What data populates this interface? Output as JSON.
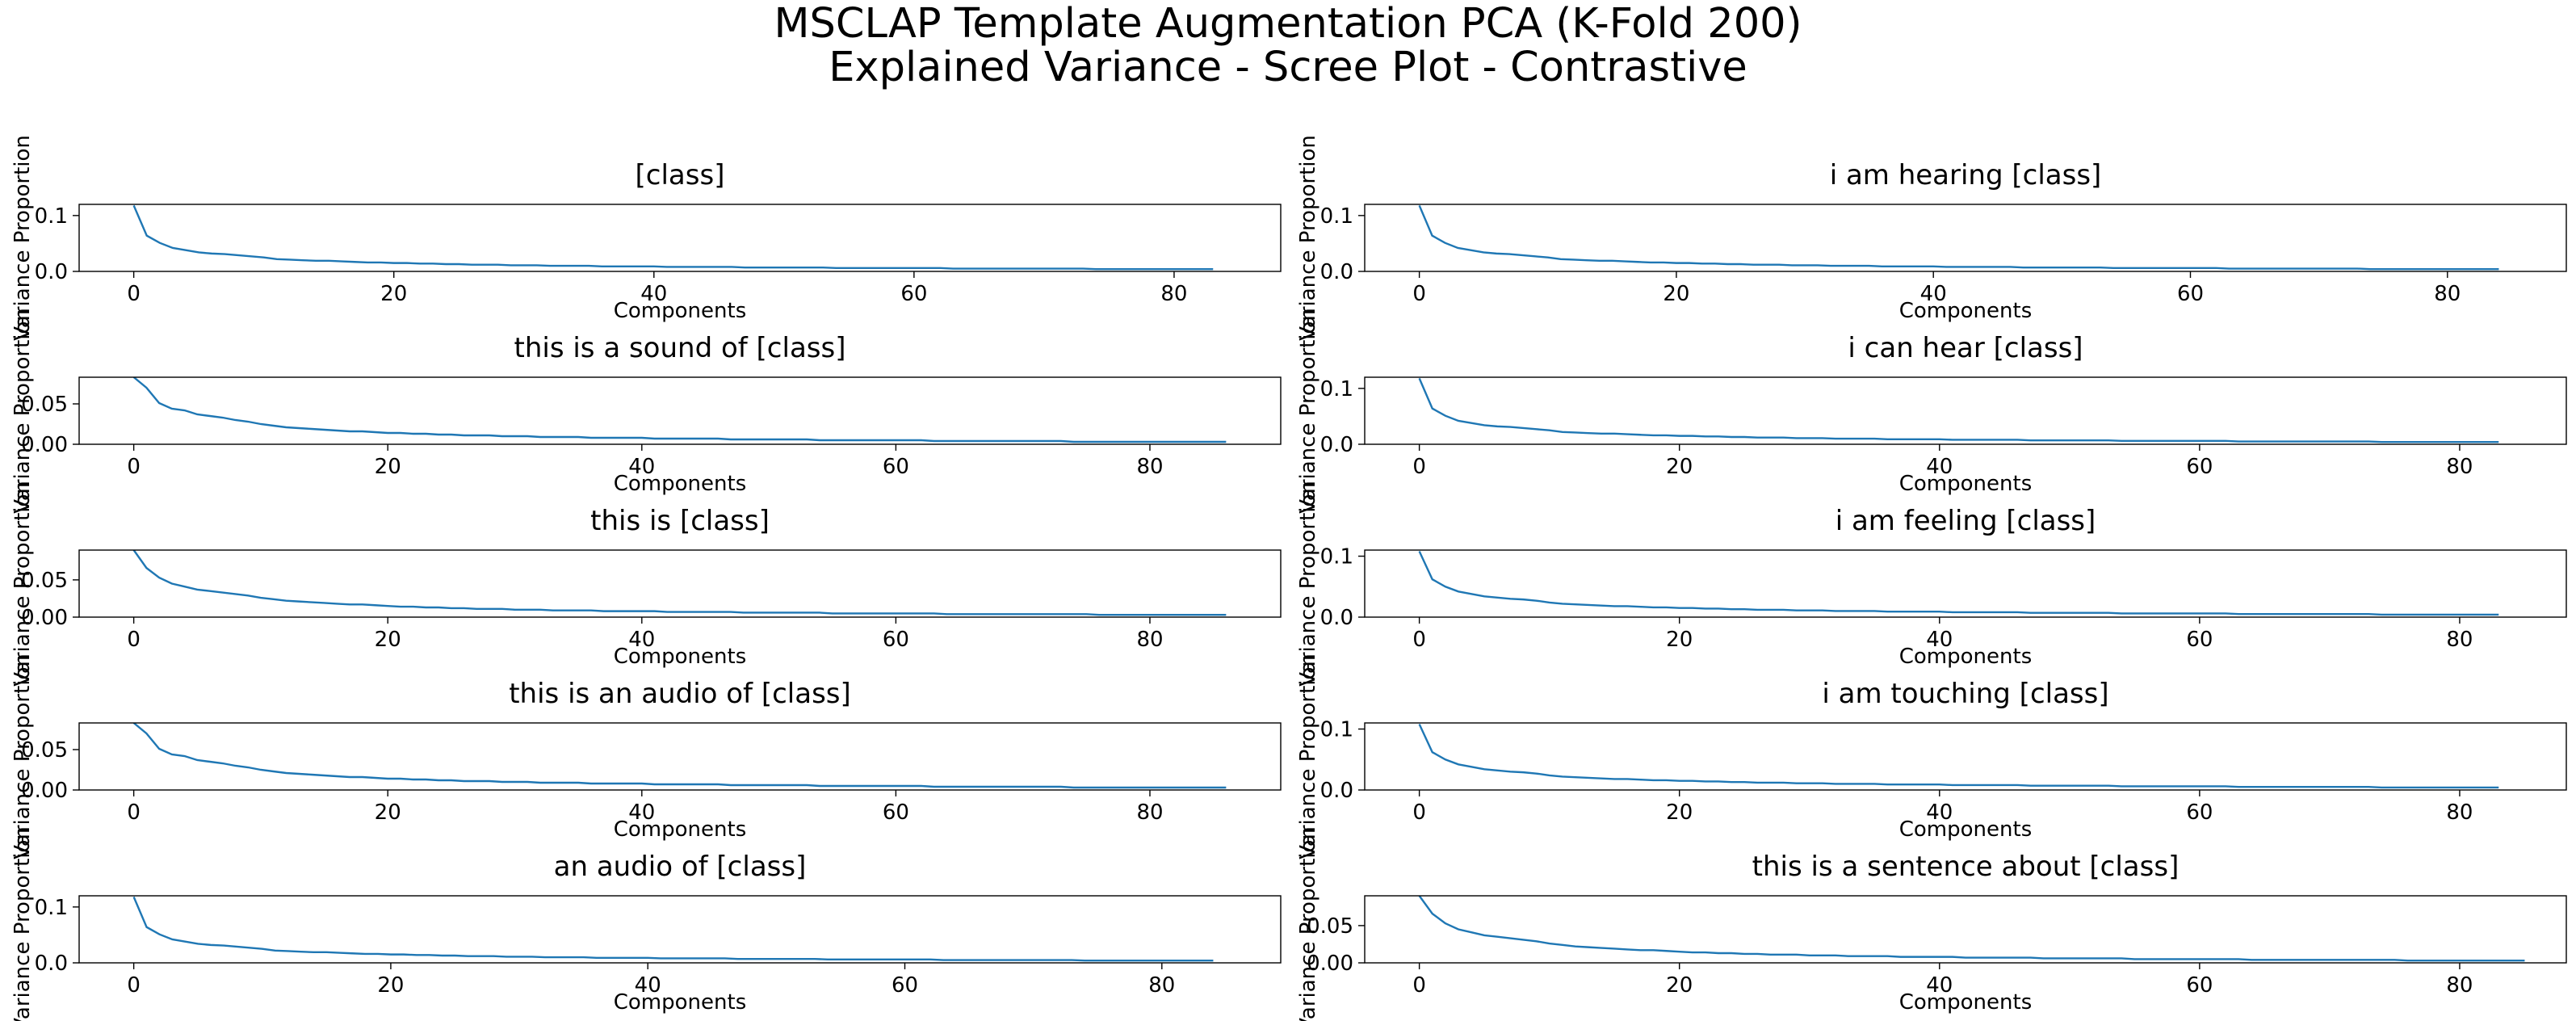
{
  "figure": {
    "title_line1": "MSCLAP Template Augmentation PCA (K-Fold 200)",
    "title_line2": "Explained Variance - Scree Plot - Contrastive",
    "line_color": "#1f77b4",
    "axis_color": "#000000"
  },
  "chart_data": [
    {
      "type": "line",
      "title": "[class]",
      "xlabel": "Components",
      "ylabel": "Variance Proportion",
      "xlim": [
        -4.2,
        88.2
      ],
      "ylim": [
        0,
        0.12
      ],
      "xticks": [
        0,
        20,
        40,
        60,
        80
      ],
      "yticks": [
        0.0,
        0.1
      ],
      "ytick_labels": [
        "0.0",
        "0.1"
      ],
      "grid": false,
      "n_components": 84,
      "first": 0.118,
      "y": [
        0.118,
        0.064,
        0.051,
        0.042,
        0.038,
        0.034,
        0.032,
        0.031,
        0.029,
        0.027,
        0.025,
        0.022,
        0.021,
        0.02,
        0.019,
        0.019,
        0.018,
        0.017,
        0.016,
        0.016,
        0.015,
        0.015,
        0.014,
        0.014,
        0.013,
        0.013,
        0.012,
        0.012,
        0.012,
        0.011,
        0.011,
        0.011,
        0.01,
        0.01,
        0.01,
        0.01,
        0.009,
        0.009,
        0.009,
        0.009,
        0.009,
        0.008,
        0.008,
        0.008,
        0.008,
        0.008,
        0.008,
        0.007,
        0.007,
        0.007,
        0.007,
        0.007,
        0.007,
        0.007,
        0.006,
        0.006,
        0.006,
        0.006,
        0.006,
        0.006,
        0.006,
        0.006,
        0.006,
        0.005,
        0.005,
        0.005,
        0.005,
        0.005,
        0.005,
        0.005,
        0.005,
        0.005,
        0.005,
        0.005,
        0.004,
        0.004,
        0.004,
        0.004,
        0.004,
        0.004,
        0.004,
        0.004,
        0.004,
        0.004
      ]
    },
    {
      "type": "line",
      "title": "i am hearing [class]",
      "xlabel": "Components",
      "ylabel": "Variance Proportion",
      "xlim": [
        -4.25,
        89.25
      ],
      "ylim": [
        0,
        0.12
      ],
      "xticks": [
        0,
        20,
        40,
        60,
        80
      ],
      "yticks": [
        0.0,
        0.1
      ],
      "ytick_labels": [
        "0.0",
        "0.1"
      ],
      "grid": false,
      "n_components": 85,
      "first": 0.118,
      "y": [
        0.118,
        0.064,
        0.051,
        0.042,
        0.038,
        0.034,
        0.032,
        0.031,
        0.029,
        0.027,
        0.025,
        0.022,
        0.021,
        0.02,
        0.019,
        0.019,
        0.018,
        0.017,
        0.016,
        0.016,
        0.015,
        0.015,
        0.014,
        0.014,
        0.013,
        0.013,
        0.012,
        0.012,
        0.012,
        0.011,
        0.011,
        0.011,
        0.01,
        0.01,
        0.01,
        0.01,
        0.009,
        0.009,
        0.009,
        0.009,
        0.009,
        0.008,
        0.008,
        0.008,
        0.008,
        0.008,
        0.008,
        0.007,
        0.007,
        0.007,
        0.007,
        0.007,
        0.007,
        0.007,
        0.006,
        0.006,
        0.006,
        0.006,
        0.006,
        0.006,
        0.006,
        0.006,
        0.006,
        0.005,
        0.005,
        0.005,
        0.005,
        0.005,
        0.005,
        0.005,
        0.005,
        0.005,
        0.005,
        0.005,
        0.004,
        0.004,
        0.004,
        0.004,
        0.004,
        0.004,
        0.004,
        0.004,
        0.004,
        0.004,
        0.004
      ]
    },
    {
      "type": "line",
      "title": "this is a sound of [class]",
      "xlabel": "Components",
      "ylabel": "Variance Proportion",
      "xlim": [
        -4.3,
        90.3
      ],
      "ylim": [
        0,
        0.083
      ],
      "xticks": [
        0,
        20,
        40,
        60,
        80
      ],
      "yticks": [
        0.0,
        0.05
      ],
      "ytick_labels": [
        "0.00",
        "0.05"
      ],
      "grid": false,
      "n_components": 87,
      "first": 0.083,
      "y": [
        0.083,
        0.07,
        0.051,
        0.044,
        0.042,
        0.037,
        0.035,
        0.033,
        0.03,
        0.028,
        0.025,
        0.023,
        0.021,
        0.02,
        0.019,
        0.018,
        0.017,
        0.016,
        0.016,
        0.015,
        0.014,
        0.014,
        0.013,
        0.013,
        0.012,
        0.012,
        0.011,
        0.011,
        0.011,
        0.01,
        0.01,
        0.01,
        0.009,
        0.009,
        0.009,
        0.009,
        0.008,
        0.008,
        0.008,
        0.008,
        0.008,
        0.007,
        0.007,
        0.007,
        0.007,
        0.007,
        0.007,
        0.006,
        0.006,
        0.006,
        0.006,
        0.006,
        0.006,
        0.006,
        0.005,
        0.005,
        0.005,
        0.005,
        0.005,
        0.005,
        0.005,
        0.005,
        0.005,
        0.004,
        0.004,
        0.004,
        0.004,
        0.004,
        0.004,
        0.004,
        0.004,
        0.004,
        0.004,
        0.004,
        0.003,
        0.003,
        0.003,
        0.003,
        0.003,
        0.003,
        0.003,
        0.003,
        0.003,
        0.003,
        0.003,
        0.003,
        0.003
      ]
    },
    {
      "type": "line",
      "title": "i can hear [class]",
      "xlabel": "Components",
      "ylabel": "Variance Proportion",
      "xlim": [
        -4.2,
        88.2
      ],
      "ylim": [
        0,
        0.12
      ],
      "xticks": [
        0,
        20,
        40,
        60,
        80
      ],
      "yticks": [
        0.0,
        0.1
      ],
      "ytick_labels": [
        "0.0",
        "0.1"
      ],
      "grid": false,
      "n_components": 84,
      "first": 0.118,
      "y": [
        0.118,
        0.064,
        0.051,
        0.042,
        0.038,
        0.034,
        0.032,
        0.031,
        0.029,
        0.027,
        0.025,
        0.022,
        0.021,
        0.02,
        0.019,
        0.019,
        0.018,
        0.017,
        0.016,
        0.016,
        0.015,
        0.015,
        0.014,
        0.014,
        0.013,
        0.013,
        0.012,
        0.012,
        0.012,
        0.011,
        0.011,
        0.011,
        0.01,
        0.01,
        0.01,
        0.01,
        0.009,
        0.009,
        0.009,
        0.009,
        0.009,
        0.008,
        0.008,
        0.008,
        0.008,
        0.008,
        0.008,
        0.007,
        0.007,
        0.007,
        0.007,
        0.007,
        0.007,
        0.007,
        0.006,
        0.006,
        0.006,
        0.006,
        0.006,
        0.006,
        0.006,
        0.006,
        0.006,
        0.005,
        0.005,
        0.005,
        0.005,
        0.005,
        0.005,
        0.005,
        0.005,
        0.005,
        0.005,
        0.005,
        0.004,
        0.004,
        0.004,
        0.004,
        0.004,
        0.004,
        0.004,
        0.004,
        0.004,
        0.004
      ]
    },
    {
      "type": "line",
      "title": "this is [class]",
      "xlabel": "Components",
      "ylabel": "Variance Proportion",
      "xlim": [
        -4.3,
        90.3
      ],
      "ylim": [
        0,
        0.09
      ],
      "xticks": [
        0,
        20,
        40,
        60,
        80
      ],
      "yticks": [
        0.0,
        0.05
      ],
      "ytick_labels": [
        "0.00",
        "0.05"
      ],
      "grid": false,
      "n_components": 87,
      "first": 0.09,
      "y": [
        0.09,
        0.066,
        0.053,
        0.045,
        0.041,
        0.037,
        0.035,
        0.033,
        0.031,
        0.029,
        0.026,
        0.024,
        0.022,
        0.021,
        0.02,
        0.019,
        0.018,
        0.017,
        0.017,
        0.016,
        0.015,
        0.014,
        0.014,
        0.013,
        0.013,
        0.012,
        0.012,
        0.011,
        0.011,
        0.011,
        0.01,
        0.01,
        0.01,
        0.009,
        0.009,
        0.009,
        0.009,
        0.008,
        0.008,
        0.008,
        0.008,
        0.008,
        0.007,
        0.007,
        0.007,
        0.007,
        0.007,
        0.007,
        0.006,
        0.006,
        0.006,
        0.006,
        0.006,
        0.006,
        0.006,
        0.005,
        0.005,
        0.005,
        0.005,
        0.005,
        0.005,
        0.005,
        0.005,
        0.005,
        0.004,
        0.004,
        0.004,
        0.004,
        0.004,
        0.004,
        0.004,
        0.004,
        0.004,
        0.004,
        0.004,
        0.004,
        0.003,
        0.003,
        0.003,
        0.003,
        0.003,
        0.003,
        0.003,
        0.003,
        0.003,
        0.003,
        0.003
      ]
    },
    {
      "type": "line",
      "title": "i am feeling [class]",
      "xlabel": "Components",
      "ylabel": "Variance Proportion",
      "xlim": [
        -4.2,
        88.2
      ],
      "ylim": [
        0,
        0.11
      ],
      "xticks": [
        0,
        20,
        40,
        60,
        80
      ],
      "yticks": [
        0.0,
        0.1
      ],
      "ytick_labels": [
        "0.0",
        "0.1"
      ],
      "grid": false,
      "n_components": 84,
      "first": 0.108,
      "y": [
        0.108,
        0.062,
        0.05,
        0.042,
        0.038,
        0.034,
        0.032,
        0.03,
        0.029,
        0.027,
        0.024,
        0.022,
        0.021,
        0.02,
        0.019,
        0.018,
        0.018,
        0.017,
        0.016,
        0.016,
        0.015,
        0.015,
        0.014,
        0.014,
        0.013,
        0.013,
        0.012,
        0.012,
        0.012,
        0.011,
        0.011,
        0.011,
        0.01,
        0.01,
        0.01,
        0.01,
        0.009,
        0.009,
        0.009,
        0.009,
        0.009,
        0.008,
        0.008,
        0.008,
        0.008,
        0.008,
        0.008,
        0.007,
        0.007,
        0.007,
        0.007,
        0.007,
        0.007,
        0.007,
        0.006,
        0.006,
        0.006,
        0.006,
        0.006,
        0.006,
        0.006,
        0.006,
        0.006,
        0.005,
        0.005,
        0.005,
        0.005,
        0.005,
        0.005,
        0.005,
        0.005,
        0.005,
        0.005,
        0.005,
        0.004,
        0.004,
        0.004,
        0.004,
        0.004,
        0.004,
        0.004,
        0.004,
        0.004,
        0.004
      ]
    },
    {
      "type": "line",
      "title": "this is an audio of [class]",
      "xlabel": "Components",
      "ylabel": "Variance Proportion",
      "xlim": [
        -4.3,
        90.3
      ],
      "ylim": [
        0,
        0.083
      ],
      "xticks": [
        0,
        20,
        40,
        60,
        80
      ],
      "yticks": [
        0.0,
        0.05
      ],
      "ytick_labels": [
        "0.00",
        "0.05"
      ],
      "grid": false,
      "n_components": 87,
      "first": 0.083,
      "y": [
        0.083,
        0.07,
        0.051,
        0.044,
        0.042,
        0.037,
        0.035,
        0.033,
        0.03,
        0.028,
        0.025,
        0.023,
        0.021,
        0.02,
        0.019,
        0.018,
        0.017,
        0.016,
        0.016,
        0.015,
        0.014,
        0.014,
        0.013,
        0.013,
        0.012,
        0.012,
        0.011,
        0.011,
        0.011,
        0.01,
        0.01,
        0.01,
        0.009,
        0.009,
        0.009,
        0.009,
        0.008,
        0.008,
        0.008,
        0.008,
        0.008,
        0.007,
        0.007,
        0.007,
        0.007,
        0.007,
        0.007,
        0.006,
        0.006,
        0.006,
        0.006,
        0.006,
        0.006,
        0.006,
        0.005,
        0.005,
        0.005,
        0.005,
        0.005,
        0.005,
        0.005,
        0.005,
        0.005,
        0.004,
        0.004,
        0.004,
        0.004,
        0.004,
        0.004,
        0.004,
        0.004,
        0.004,
        0.004,
        0.004,
        0.003,
        0.003,
        0.003,
        0.003,
        0.003,
        0.003,
        0.003,
        0.003,
        0.003,
        0.003,
        0.003,
        0.003,
        0.003
      ]
    },
    {
      "type": "line",
      "title": "i am touching [class]",
      "xlabel": "Components",
      "ylabel": "Variance Proportion",
      "xlim": [
        -4.2,
        88.2
      ],
      "ylim": [
        0,
        0.11
      ],
      "xticks": [
        0,
        20,
        40,
        60,
        80
      ],
      "yticks": [
        0.0,
        0.1
      ],
      "ytick_labels": [
        "0.0",
        "0.1"
      ],
      "grid": false,
      "n_components": 84,
      "first": 0.108,
      "y": [
        0.108,
        0.062,
        0.05,
        0.042,
        0.038,
        0.034,
        0.032,
        0.03,
        0.029,
        0.027,
        0.024,
        0.022,
        0.021,
        0.02,
        0.019,
        0.018,
        0.018,
        0.017,
        0.016,
        0.016,
        0.015,
        0.015,
        0.014,
        0.014,
        0.013,
        0.013,
        0.012,
        0.012,
        0.012,
        0.011,
        0.011,
        0.011,
        0.01,
        0.01,
        0.01,
        0.01,
        0.009,
        0.009,
        0.009,
        0.009,
        0.009,
        0.008,
        0.008,
        0.008,
        0.008,
        0.008,
        0.008,
        0.007,
        0.007,
        0.007,
        0.007,
        0.007,
        0.007,
        0.007,
        0.006,
        0.006,
        0.006,
        0.006,
        0.006,
        0.006,
        0.006,
        0.006,
        0.006,
        0.005,
        0.005,
        0.005,
        0.005,
        0.005,
        0.005,
        0.005,
        0.005,
        0.005,
        0.005,
        0.005,
        0.004,
        0.004,
        0.004,
        0.004,
        0.004,
        0.004,
        0.004,
        0.004,
        0.004,
        0.004
      ]
    },
    {
      "type": "line",
      "title": "an audio of [class]",
      "xlabel": "Components",
      "ylabel": "Variance Proportion",
      "xlim": [
        -4.25,
        89.25
      ],
      "ylim": [
        0,
        0.12
      ],
      "xticks": [
        0,
        20,
        40,
        60,
        80
      ],
      "yticks": [
        0.0,
        0.1
      ],
      "ytick_labels": [
        "0.0",
        "0.1"
      ],
      "grid": false,
      "n_components": 85,
      "first": 0.118,
      "y": [
        0.118,
        0.064,
        0.051,
        0.042,
        0.038,
        0.034,
        0.032,
        0.031,
        0.029,
        0.027,
        0.025,
        0.022,
        0.021,
        0.02,
        0.019,
        0.019,
        0.018,
        0.017,
        0.016,
        0.016,
        0.015,
        0.015,
        0.014,
        0.014,
        0.013,
        0.013,
        0.012,
        0.012,
        0.012,
        0.011,
        0.011,
        0.011,
        0.01,
        0.01,
        0.01,
        0.01,
        0.009,
        0.009,
        0.009,
        0.009,
        0.009,
        0.008,
        0.008,
        0.008,
        0.008,
        0.008,
        0.008,
        0.007,
        0.007,
        0.007,
        0.007,
        0.007,
        0.007,
        0.007,
        0.006,
        0.006,
        0.006,
        0.006,
        0.006,
        0.006,
        0.006,
        0.006,
        0.006,
        0.005,
        0.005,
        0.005,
        0.005,
        0.005,
        0.005,
        0.005,
        0.005,
        0.005,
        0.005,
        0.005,
        0.004,
        0.004,
        0.004,
        0.004,
        0.004,
        0.004,
        0.004,
        0.004,
        0.004,
        0.004,
        0.004
      ]
    },
    {
      "type": "line",
      "title": "this is a sentence about [class]",
      "xlabel": "Components",
      "ylabel": "Variance Proportion",
      "xlim": [
        -4.2,
        88.2
      ],
      "ylim": [
        0,
        0.09
      ],
      "xticks": [
        0,
        20,
        40,
        60,
        80
      ],
      "yticks": [
        0.0,
        0.05
      ],
      "ytick_labels": [
        "0.00",
        "0.05"
      ],
      "grid": false,
      "n_components": 84,
      "first": 0.09,
      "y": [
        0.09,
        0.066,
        0.053,
        0.045,
        0.041,
        0.037,
        0.035,
        0.033,
        0.031,
        0.029,
        0.026,
        0.024,
        0.022,
        0.021,
        0.02,
        0.019,
        0.018,
        0.017,
        0.017,
        0.016,
        0.015,
        0.014,
        0.014,
        0.013,
        0.013,
        0.012,
        0.012,
        0.011,
        0.011,
        0.011,
        0.01,
        0.01,
        0.01,
        0.009,
        0.009,
        0.009,
        0.009,
        0.008,
        0.008,
        0.008,
        0.008,
        0.008,
        0.007,
        0.007,
        0.007,
        0.007,
        0.007,
        0.007,
        0.006,
        0.006,
        0.006,
        0.006,
        0.006,
        0.006,
        0.006,
        0.005,
        0.005,
        0.005,
        0.005,
        0.005,
        0.005,
        0.005,
        0.005,
        0.005,
        0.004,
        0.004,
        0.004,
        0.004,
        0.004,
        0.004,
        0.004,
        0.004,
        0.004,
        0.004,
        0.004,
        0.004,
        0.003,
        0.003,
        0.003,
        0.003,
        0.003,
        0.003,
        0.003,
        0.003,
        0.003,
        0.003
      ]
    }
  ]
}
